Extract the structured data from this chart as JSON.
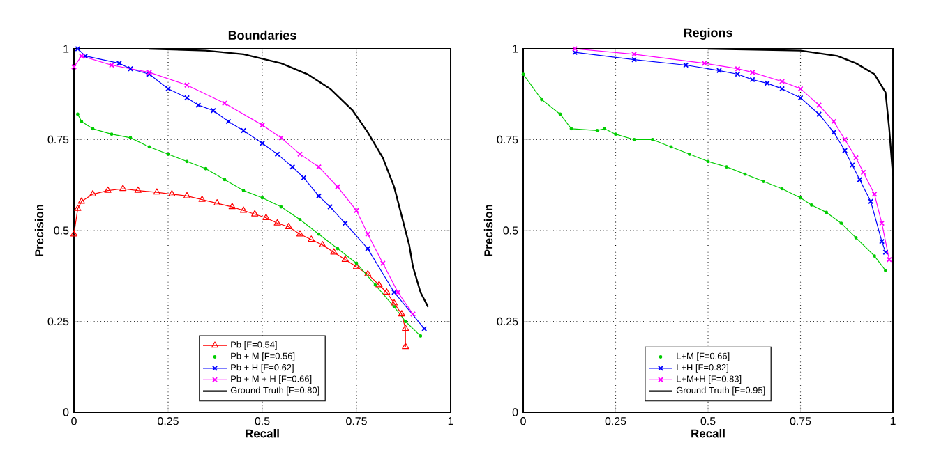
{
  "chart_data": [
    {
      "type": "line",
      "title": "Boundaries",
      "xlabel": "Recall",
      "ylabel": "Precision",
      "xlim": [
        0,
        1
      ],
      "ylim": [
        0,
        1
      ],
      "xticks": [
        0,
        0.25,
        0.5,
        0.75,
        1
      ],
      "yticks": [
        0,
        0.25,
        0.5,
        0.75,
        1
      ],
      "grid": true,
      "legend": "bottom",
      "series": [
        {
          "name": "Pb [F=0.54]",
          "color": "#ff0000",
          "marker": "triangle",
          "x": [
            0,
            0.01,
            0.02,
            0.05,
            0.09,
            0.13,
            0.17,
            0.22,
            0.26,
            0.3,
            0.34,
            0.38,
            0.42,
            0.45,
            0.48,
            0.51,
            0.54,
            0.57,
            0.6,
            0.63,
            0.66,
            0.69,
            0.72,
            0.75,
            0.78,
            0.81,
            0.83,
            0.85,
            0.87,
            0.88,
            0.88
          ],
          "values": [
            0.49,
            0.56,
            0.58,
            0.6,
            0.61,
            0.615,
            0.61,
            0.605,
            0.6,
            0.595,
            0.585,
            0.575,
            0.565,
            0.555,
            0.545,
            0.535,
            0.52,
            0.51,
            0.49,
            0.475,
            0.46,
            0.44,
            0.42,
            0.4,
            0.38,
            0.35,
            0.33,
            0.3,
            0.27,
            0.23,
            0.18
          ]
        },
        {
          "name": "Pb + M [F=0.56]",
          "color": "#00cc00",
          "marker": "circle",
          "x": [
            0.01,
            0.02,
            0.05,
            0.1,
            0.15,
            0.2,
            0.25,
            0.3,
            0.35,
            0.4,
            0.45,
            0.5,
            0.55,
            0.6,
            0.65,
            0.7,
            0.75,
            0.8,
            0.85,
            0.88,
            0.92
          ],
          "values": [
            0.82,
            0.8,
            0.78,
            0.765,
            0.755,
            0.73,
            0.71,
            0.69,
            0.67,
            0.64,
            0.61,
            0.59,
            0.565,
            0.53,
            0.49,
            0.45,
            0.41,
            0.35,
            0.29,
            0.25,
            0.21
          ]
        },
        {
          "name": "Pb + H [F=0.62]",
          "color": "#0000ff",
          "marker": "cross",
          "x": [
            0.01,
            0.03,
            0.12,
            0.15,
            0.2,
            0.25,
            0.3,
            0.33,
            0.37,
            0.41,
            0.45,
            0.5,
            0.54,
            0.58,
            0.61,
            0.65,
            0.68,
            0.72,
            0.78,
            0.85,
            0.93
          ],
          "values": [
            1.0,
            0.98,
            0.96,
            0.945,
            0.93,
            0.89,
            0.865,
            0.845,
            0.83,
            0.8,
            0.775,
            0.74,
            0.71,
            0.675,
            0.645,
            0.595,
            0.565,
            0.52,
            0.45,
            0.33,
            0.23
          ]
        },
        {
          "name": "Pb + M + H [F=0.66]",
          "color": "#ff00ff",
          "marker": "cross",
          "x": [
            0.0,
            0.02,
            0.1,
            0.2,
            0.3,
            0.4,
            0.5,
            0.55,
            0.6,
            0.65,
            0.7,
            0.75,
            0.78,
            0.82,
            0.86,
            0.9
          ],
          "values": [
            0.95,
            0.98,
            0.955,
            0.935,
            0.9,
            0.85,
            0.79,
            0.755,
            0.71,
            0.675,
            0.62,
            0.555,
            0.49,
            0.41,
            0.33,
            0.27
          ]
        },
        {
          "name": "Ground Truth [F=0.80]",
          "color": "#000000",
          "marker": "none",
          "x": [
            0.2,
            0.35,
            0.45,
            0.55,
            0.62,
            0.68,
            0.74,
            0.78,
            0.82,
            0.85,
            0.87,
            0.89,
            0.9,
            0.92,
            0.94
          ],
          "values": [
            1.0,
            0.995,
            0.985,
            0.96,
            0.93,
            0.89,
            0.83,
            0.77,
            0.7,
            0.62,
            0.54,
            0.46,
            0.4,
            0.33,
            0.29
          ]
        }
      ]
    },
    {
      "type": "line",
      "title": "Regions",
      "xlabel": "Recall",
      "ylabel": "Precision",
      "xlim": [
        0,
        1
      ],
      "ylim": [
        0,
        1
      ],
      "xticks": [
        0,
        0.25,
        0.5,
        0.75,
        1
      ],
      "yticks": [
        0,
        0.25,
        0.5,
        0.75,
        1
      ],
      "grid": true,
      "legend": "bottom",
      "series": [
        {
          "name": "L+M [F=0.66]",
          "color": "#00cc00",
          "marker": "circle",
          "x": [
            0,
            0.05,
            0.1,
            0.13,
            0.2,
            0.22,
            0.25,
            0.3,
            0.35,
            0.4,
            0.45,
            0.5,
            0.55,
            0.6,
            0.65,
            0.7,
            0.75,
            0.78,
            0.82,
            0.86,
            0.9,
            0.95,
            0.98
          ],
          "values": [
            0.93,
            0.86,
            0.82,
            0.78,
            0.775,
            0.78,
            0.765,
            0.75,
            0.75,
            0.73,
            0.71,
            0.69,
            0.675,
            0.655,
            0.635,
            0.615,
            0.59,
            0.57,
            0.55,
            0.52,
            0.48,
            0.43,
            0.39
          ]
        },
        {
          "name": "L+H [F=0.82]",
          "color": "#0000ff",
          "marker": "cross",
          "x": [
            0.14,
            0.3,
            0.44,
            0.53,
            0.58,
            0.62,
            0.66,
            0.7,
            0.75,
            0.8,
            0.84,
            0.87,
            0.89,
            0.91,
            0.94,
            0.97,
            0.98
          ],
          "values": [
            0.99,
            0.97,
            0.955,
            0.94,
            0.93,
            0.915,
            0.905,
            0.89,
            0.865,
            0.82,
            0.77,
            0.72,
            0.68,
            0.64,
            0.58,
            0.47,
            0.44
          ]
        },
        {
          "name": "L+M+H [F=0.83]",
          "color": "#ff00ff",
          "marker": "cross",
          "x": [
            0.14,
            0.3,
            0.49,
            0.58,
            0.62,
            0.7,
            0.75,
            0.8,
            0.84,
            0.87,
            0.9,
            0.92,
            0.95,
            0.97,
            0.99
          ],
          "values": [
            1.0,
            0.985,
            0.96,
            0.945,
            0.935,
            0.91,
            0.89,
            0.845,
            0.8,
            0.75,
            0.7,
            0.66,
            0.6,
            0.52,
            0.42
          ]
        },
        {
          "name": "Ground Truth [F=0.95]",
          "color": "#000000",
          "marker": "none",
          "x": [
            0.5,
            0.75,
            0.85,
            0.9,
            0.95,
            0.98,
            0.99,
            1.0
          ],
          "values": [
            1.0,
            0.995,
            0.98,
            0.96,
            0.93,
            0.88,
            0.78,
            0.65
          ]
        }
      ]
    }
  ]
}
